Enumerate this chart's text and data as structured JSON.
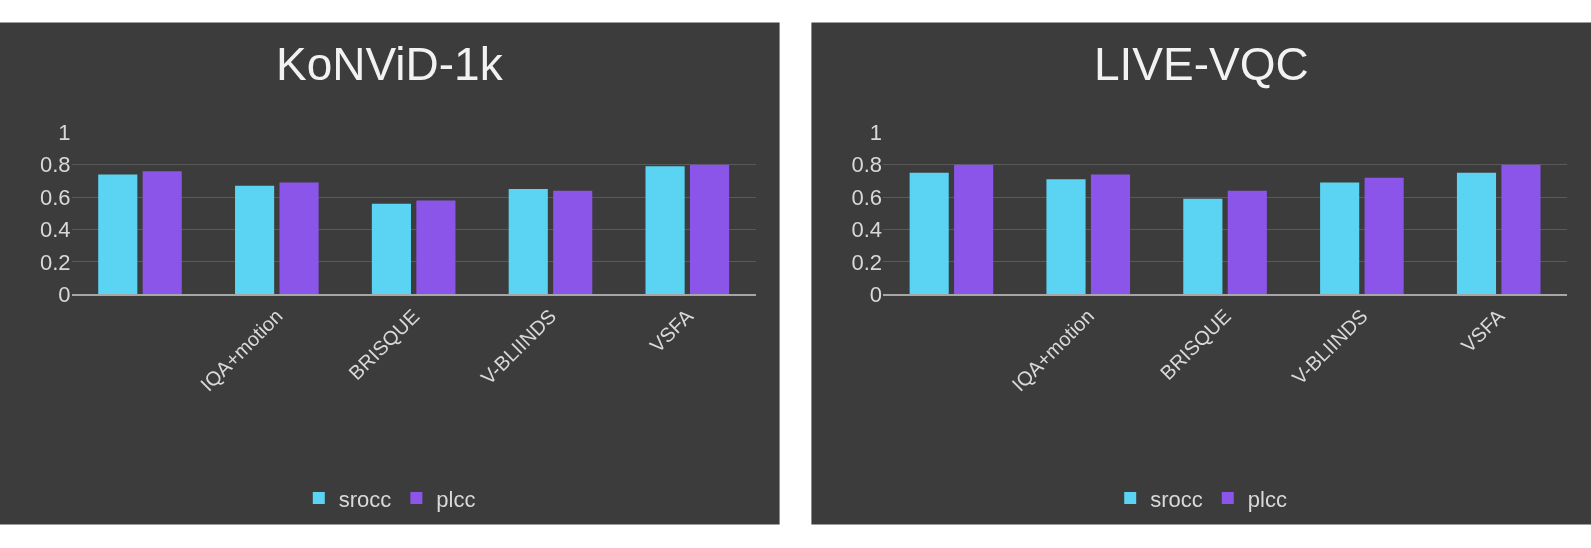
{
  "chart_data": [
    {
      "type": "bar",
      "title": "KoNViD-1k",
      "categories": [
        null,
        "IQA+motion",
        "BRISQUE",
        "V-BLIINDS",
        "VSFA"
      ],
      "series": [
        {
          "name": "srocc",
          "color": "#5ad4f2",
          "values": [
            0.74,
            0.67,
            0.56,
            0.65,
            0.79
          ]
        },
        {
          "name": "plcc",
          "color": "#8a55e8",
          "values": [
            0.76,
            0.69,
            0.58,
            0.64,
            0.8
          ]
        }
      ],
      "ylim": [
        0,
        1
      ],
      "yticks": [
        0,
        0.2,
        0.4,
        0.6,
        0.8,
        1
      ],
      "grid": "y",
      "legend": "bottom"
    },
    {
      "type": "bar",
      "title": "LIVE-VQC",
      "categories": [
        null,
        "IQA+motion",
        "BRISQUE",
        "V-BLIINDS",
        "VSFA"
      ],
      "series": [
        {
          "name": "srocc",
          "color": "#5ad4f2",
          "values": [
            0.75,
            0.71,
            0.59,
            0.69,
            0.75
          ]
        },
        {
          "name": "plcc",
          "color": "#8a55e8",
          "values": [
            0.8,
            0.74,
            0.64,
            0.72,
            0.8
          ]
        }
      ],
      "ylim": [
        0,
        1
      ],
      "yticks": [
        0,
        0.2,
        0.4,
        0.6,
        0.8,
        1
      ],
      "grid": "y",
      "legend": "bottom"
    }
  ]
}
